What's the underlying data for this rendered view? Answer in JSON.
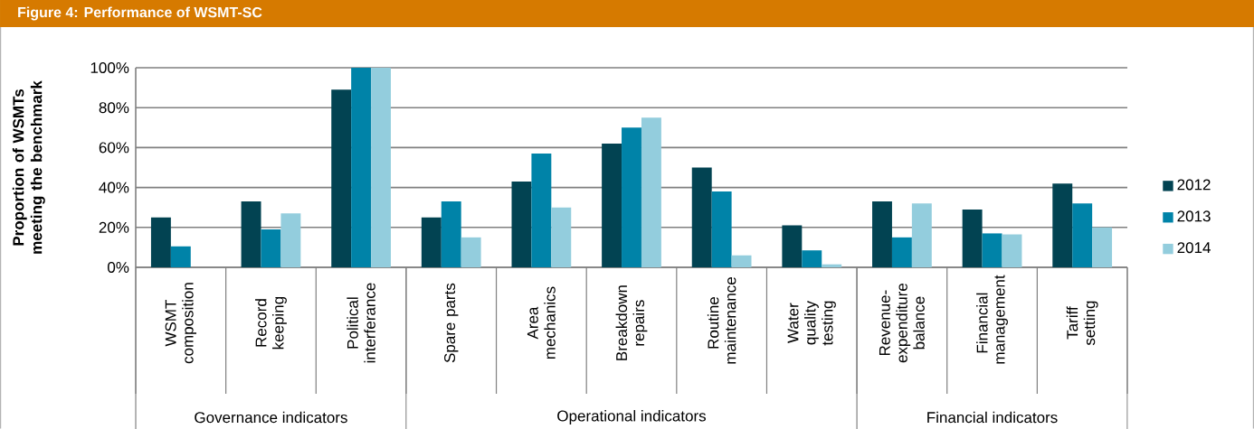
{
  "chart_data": {
    "type": "bar",
    "title": "Figure 4: Performance of WSMT-SC",
    "ylabel": "Proportion of WSMTs meeting the benchmark",
    "categories": [
      "WSMT composition",
      "Record keeping",
      "Political interferance",
      "Spare parts",
      "Area mechanics",
      "Breakdown repairs",
      "Routine maintenance",
      "Water quality testing",
      "Revenue-expenditure balance",
      "Financial management",
      "Tariff setting"
    ],
    "series": [
      {
        "name": "2012",
        "color": "#024352",
        "values": [
          25,
          33,
          89,
          25,
          43,
          62,
          50,
          21,
          33,
          29,
          42
        ]
      },
      {
        "name": "2013",
        "color": "#0083a8",
        "values": [
          10.5,
          19,
          100,
          33,
          57,
          70,
          38,
          8.5,
          15,
          17,
          32
        ]
      },
      {
        "name": "2014",
        "color": "#93cddd",
        "values": [
          0,
          27,
          100,
          15,
          30,
          75,
          6,
          1.5,
          32,
          16.5,
          20
        ]
      }
    ],
    "ylim": [
      0,
      100
    ],
    "yticks": [
      {
        "value": 0,
        "label": "0%"
      },
      {
        "value": 20,
        "label": "20%"
      },
      {
        "value": 40,
        "label": "40%"
      },
      {
        "value": 60,
        "label": "60%"
      },
      {
        "value": 80,
        "label": "80%"
      },
      {
        "value": 100,
        "label": "100%"
      }
    ],
    "grid": "y",
    "legend": "right",
    "annotations": [
      "Governance indicators",
      "Operational indicators",
      "Financial indicators"
    ]
  }
}
